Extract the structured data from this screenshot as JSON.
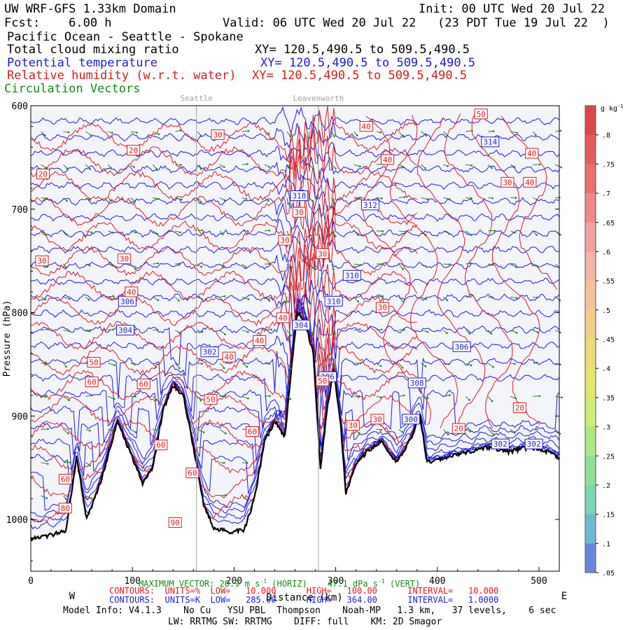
{
  "header": {
    "title": "UW WRF-GFS 1.33km Domain",
    "init": "Init: 00 UTC Wed 20 Jul 22",
    "fcst": "Fcst:    6.00 h",
    "valid": "Valid: 06 UTC Wed 20 Jul 22   (23 PDT Tue 19 Jul 22  )",
    "region": "Pacific Ocean - Seattle - Spokane",
    "field1": "Total cloud mixing ratio",
    "field1_xy": "XY= 120.5,490.5 to 509.5,490.5",
    "field2": "Potential temperature",
    "field2_xy": "XY= 120.5,490.5 to 509.5,490.5",
    "field3": "Relative humidity (w.r.t. water)",
    "field3_xy": "XY= 120.5,490.5 to 509.5,490.5",
    "field4": "Circulation Vectors"
  },
  "colors": {
    "black": "#000000",
    "blue": "#1a1adc",
    "red": "#dc1a1a",
    "green": "#128a12",
    "plot_bg": "#f4f4fb",
    "ref_line": "#a0a0a0"
  },
  "chart_data": {
    "type": "contour cross-section",
    "ylabel": "Pressure (hPa)",
    "xlabel": "Distance (km)",
    "xlim": [
      0,
      520
    ],
    "ylim": [
      1050,
      600
    ],
    "x_ticks": [
      "0",
      "100",
      "200",
      "300",
      "400",
      "500"
    ],
    "x_tick_values": [
      0,
      100,
      200,
      300,
      400,
      500
    ],
    "y_ticks": [
      "600",
      "700",
      "800",
      "900",
      "1000"
    ],
    "y_tick_values": [
      600,
      700,
      800,
      900,
      1000
    ],
    "end_labels": {
      "west": "W",
      "east": "E"
    },
    "reference_lines": [
      {
        "label": "Seattle",
        "x": 163
      },
      {
        "label": "Leavenworth",
        "x": 283
      }
    ],
    "terrain_surface_hpa": [
      {
        "x": 0,
        "p": 1018
      },
      {
        "x": 20,
        "p": 1015
      },
      {
        "x": 35,
        "p": 1010
      },
      {
        "x": 45,
        "p": 940
      },
      {
        "x": 55,
        "p": 1000
      },
      {
        "x": 70,
        "p": 960
      },
      {
        "x": 85,
        "p": 905
      },
      {
        "x": 100,
        "p": 940
      },
      {
        "x": 110,
        "p": 965
      },
      {
        "x": 120,
        "p": 950
      },
      {
        "x": 130,
        "p": 895
      },
      {
        "x": 140,
        "p": 870
      },
      {
        "x": 150,
        "p": 880
      },
      {
        "x": 160,
        "p": 930
      },
      {
        "x": 170,
        "p": 985
      },
      {
        "x": 180,
        "p": 1008
      },
      {
        "x": 195,
        "p": 1012
      },
      {
        "x": 210,
        "p": 1010
      },
      {
        "x": 220,
        "p": 980
      },
      {
        "x": 230,
        "p": 925
      },
      {
        "x": 240,
        "p": 905
      },
      {
        "x": 250,
        "p": 920
      },
      {
        "x": 256,
        "p": 860
      },
      {
        "x": 262,
        "p": 800
      },
      {
        "x": 270,
        "p": 810
      },
      {
        "x": 278,
        "p": 840
      },
      {
        "x": 285,
        "p": 950
      },
      {
        "x": 292,
        "p": 890
      },
      {
        "x": 298,
        "p": 855
      },
      {
        "x": 305,
        "p": 910
      },
      {
        "x": 310,
        "p": 975
      },
      {
        "x": 318,
        "p": 950
      },
      {
        "x": 330,
        "p": 935
      },
      {
        "x": 345,
        "p": 925
      },
      {
        "x": 360,
        "p": 945
      },
      {
        "x": 375,
        "p": 920
      },
      {
        "x": 383,
        "p": 900
      },
      {
        "x": 390,
        "p": 945
      },
      {
        "x": 410,
        "p": 940
      },
      {
        "x": 430,
        "p": 935
      },
      {
        "x": 450,
        "p": 930
      },
      {
        "x": 470,
        "p": 935
      },
      {
        "x": 490,
        "p": 930
      },
      {
        "x": 505,
        "p": 933
      },
      {
        "x": 520,
        "p": 940
      }
    ],
    "theta_contour_labels": [
      {
        "value": "314",
        "x": 452,
        "p": 635
      },
      {
        "value": "312",
        "x": 334,
        "p": 696
      },
      {
        "value": "318",
        "x": 264,
        "p": 687
      },
      {
        "value": "310",
        "x": 316,
        "p": 764
      },
      {
        "value": "310",
        "x": 298,
        "p": 789
      },
      {
        "value": "306",
        "x": 95,
        "p": 789
      },
      {
        "value": "304",
        "x": 93,
        "p": 817
      },
      {
        "value": "304",
        "x": 266,
        "p": 812
      },
      {
        "value": "302",
        "x": 176,
        "p": 838
      },
      {
        "value": "306",
        "x": 424,
        "p": 833
      },
      {
        "value": "306",
        "x": 292,
        "p": 862
      },
      {
        "value": "308",
        "x": 380,
        "p": 868
      },
      {
        "value": "300",
        "x": 374,
        "p": 903
      },
      {
        "value": "302",
        "x": 462,
        "p": 927
      },
      {
        "value": "302",
        "x": 495,
        "p": 927
      }
    ],
    "rh_contour_labels": [
      {
        "value": "50",
        "x": 443,
        "p": 608
      },
      {
        "value": "40",
        "x": 330,
        "p": 620
      },
      {
        "value": "30",
        "x": 184,
        "p": 628
      },
      {
        "value": "20",
        "x": 101,
        "p": 643
      },
      {
        "value": "20",
        "x": 12,
        "p": 666
      },
      {
        "value": "40",
        "x": 351,
        "p": 652
      },
      {
        "value": "40",
        "x": 493,
        "p": 646
      },
      {
        "value": "30",
        "x": 469,
        "p": 674
      },
      {
        "value": "40",
        "x": 491,
        "p": 674
      },
      {
        "value": "30",
        "x": 264,
        "p": 703
      },
      {
        "value": "30",
        "x": 250,
        "p": 730
      },
      {
        "value": "30",
        "x": 92,
        "p": 748
      },
      {
        "value": "30",
        "x": 287,
        "p": 743
      },
      {
        "value": "30",
        "x": 11,
        "p": 750
      },
      {
        "value": "40",
        "x": 99,
        "p": 780
      },
      {
        "value": "30",
        "x": 346,
        "p": 795
      },
      {
        "value": "40",
        "x": 248,
        "p": 805
      },
      {
        "value": "40",
        "x": 225,
        "p": 827
      },
      {
        "value": "40",
        "x": 195,
        "p": 843
      },
      {
        "value": "50",
        "x": 62,
        "p": 848
      },
      {
        "value": "60",
        "x": 60,
        "p": 867
      },
      {
        "value": "60",
        "x": 111,
        "p": 869
      },
      {
        "value": "50",
        "x": 177,
        "p": 884
      },
      {
        "value": "50",
        "x": 287,
        "p": 866
      },
      {
        "value": "30",
        "x": 341,
        "p": 903
      },
      {
        "value": "30",
        "x": 317,
        "p": 909
      },
      {
        "value": "20",
        "x": 481,
        "p": 892
      },
      {
        "value": "20",
        "x": 421,
        "p": 912
      },
      {
        "value": "60",
        "x": 218,
        "p": 915
      },
      {
        "value": "60",
        "x": 128,
        "p": 928
      },
      {
        "value": "60",
        "x": 159,
        "p": 955
      },
      {
        "value": "60",
        "x": 34,
        "p": 961
      },
      {
        "value": "80",
        "x": 34,
        "p": 989
      },
      {
        "value": "90",
        "x": 142,
        "p": 1003
      }
    ],
    "colorbar": {
      "unit": "g kg",
      "unit_exp": "-1",
      "levels": [
        ".8",
        ".75",
        ".7",
        ".65",
        ".6",
        ".55",
        ".5",
        ".45",
        ".4",
        ".35",
        ".3",
        ".25",
        ".2",
        ".15",
        ".1",
        ".05"
      ],
      "values": [
        0.8,
        0.75,
        0.7,
        0.65,
        0.6,
        0.55,
        0.5,
        0.45,
        0.4,
        0.35,
        0.3,
        0.25,
        0.2,
        0.15,
        0.1,
        0.05
      ]
    }
  },
  "footer": {
    "max_vector_label": "MAXIMUM VECTOR:",
    "max_vector_horiz": "20.9 m s",
    "max_vector_horiz_unit": "(HORIZ)",
    "max_vector_vert": "47.1 dPa s",
    "max_vector_vert_unit": "(VERT)",
    "rh_contours": "CONTOURS:  UNITS=%  LOW=   10.000      HIGH=   100.00      INTERVAL=   10.000",
    "theta_contours": "CONTOURS:  UNITS=K  LOW=   285.00      HIGH=   364.00      INTERVAL=   1.0000",
    "model_info": "Model Info: V4.1.3    No Cu   YSU PBL  Thompson    Noah-MP   1.3 km,   37 levels,    6 sec",
    "model_info2": "LW: RRTMG SW: RRTMG    DIFF: full    KM: 2D Smagor"
  }
}
